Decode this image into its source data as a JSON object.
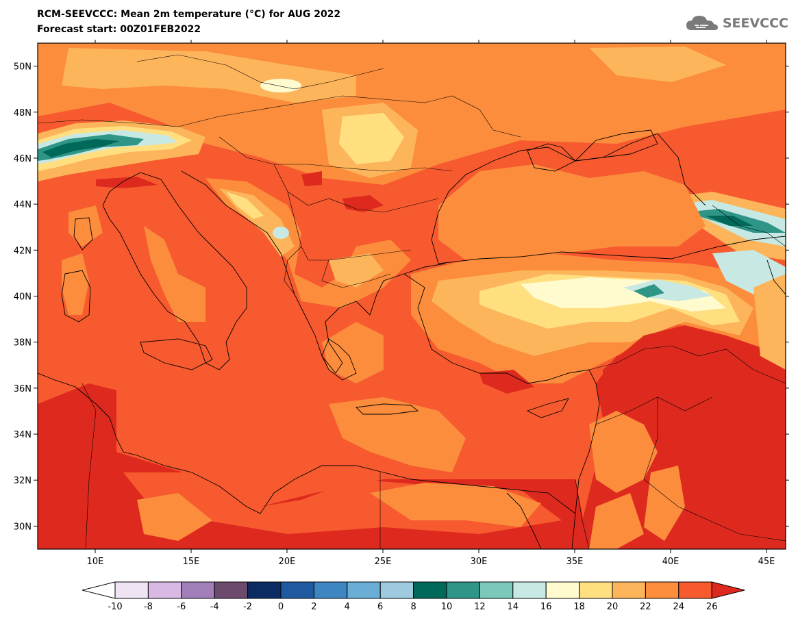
{
  "header": {
    "title": "RCM-SEEVCCC: Mean 2m temperature (°C) for AUG 2022",
    "subtitle": "Forecast start: 00Z01FEB2022",
    "logo_text": "SEEVCCC"
  },
  "map": {
    "lon_range": [
      7,
      46
    ],
    "lat_range": [
      29,
      51
    ],
    "lon_ticks": [
      "10E",
      "15E",
      "20E",
      "25E",
      "30E",
      "35E",
      "40E",
      "45E"
    ],
    "lat_ticks": [
      "50N",
      "48N",
      "46N",
      "44N",
      "42N",
      "40N",
      "38N",
      "36N",
      "34N",
      "32N",
      "30N"
    ]
  },
  "colorbar": {
    "labels": [
      "-10",
      "-8",
      "-6",
      "-4",
      "-2",
      "0",
      "2",
      "4",
      "6",
      "8",
      "10",
      "12",
      "14",
      "16",
      "18",
      "20",
      "22",
      "24",
      "26"
    ],
    "under_color": "#ffffff",
    "over_color": "#de2a1e",
    "colors": [
      "#efe4f3",
      "#d7b9e3",
      "#a27fb8",
      "#6b4a6e",
      "#0b2b62",
      "#1f5aa0",
      "#3d86c2",
      "#6aaed6",
      "#9ecae0",
      "#00695a",
      "#2f9587",
      "#7cc9bb",
      "#c8e8e3",
      "#fffbcf",
      "#ffdf80",
      "#fdb55b",
      "#fb8d3c",
      "#f65a2e"
    ]
  }
}
